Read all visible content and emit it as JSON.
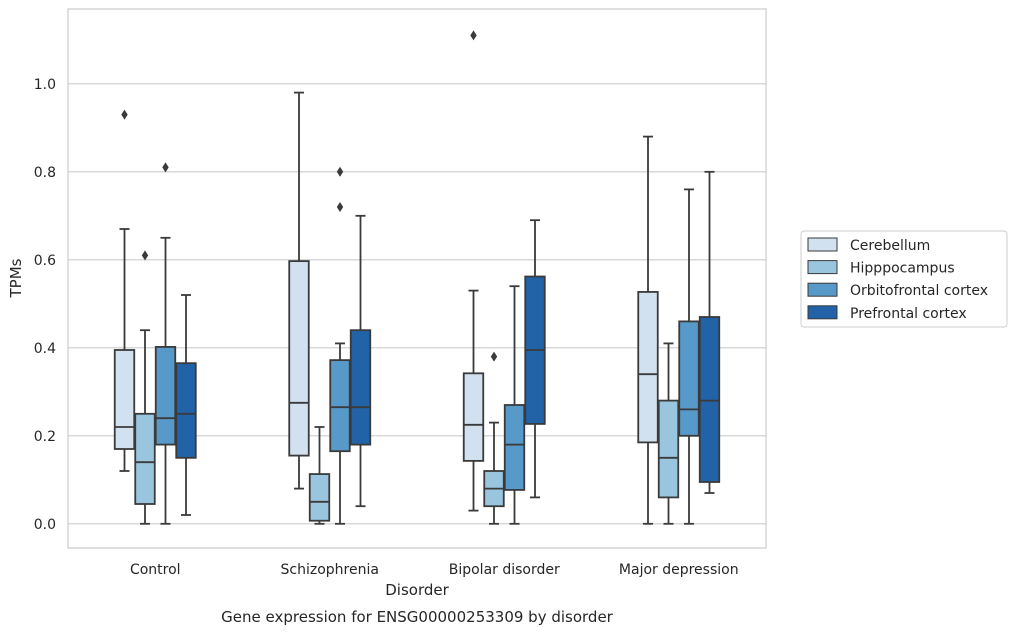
{
  "chart_data": {
    "type": "box",
    "caption": "Gene expression for ENSG00000253309 by disorder",
    "xlabel": "Disorder",
    "ylabel": "TPMs",
    "ylim": [
      -0.055,
      1.17
    ],
    "yticks": [
      "0.0",
      "0.2",
      "0.4",
      "0.6",
      "0.8",
      "1.0"
    ],
    "grid": "horizontal",
    "legend_position": "right",
    "categories": [
      "Control",
      "Schizophrenia",
      "Bipolar disorder",
      "Major depression"
    ],
    "series": [
      {
        "name": "Cerebellum",
        "color": "#d1e1f0",
        "boxes": [
          {
            "whisker_low": 0.12,
            "q1": 0.17,
            "median": 0.22,
            "q3": 0.395,
            "whisker_high": 0.67,
            "outliers": [
              0.93
            ]
          },
          {
            "whisker_low": 0.08,
            "q1": 0.155,
            "median": 0.275,
            "q3": 0.597,
            "whisker_high": 0.98,
            "outliers": []
          },
          {
            "whisker_low": 0.03,
            "q1": 0.143,
            "median": 0.225,
            "q3": 0.342,
            "whisker_high": 0.53,
            "outliers": [
              1.11
            ]
          },
          {
            "whisker_low": 0.0,
            "q1": 0.185,
            "median": 0.34,
            "q3": 0.527,
            "whisker_high": 0.88,
            "outliers": []
          }
        ]
      },
      {
        "name": "Hipppocampus",
        "color": "#9ac5de",
        "boxes": [
          {
            "whisker_low": 0.0,
            "q1": 0.045,
            "median": 0.14,
            "q3": 0.25,
            "whisker_high": 0.44,
            "outliers": [
              0.61
            ]
          },
          {
            "whisker_low": 0.0,
            "q1": 0.007,
            "median": 0.05,
            "q3": 0.113,
            "whisker_high": 0.22,
            "outliers": []
          },
          {
            "whisker_low": 0.0,
            "q1": 0.04,
            "median": 0.08,
            "q3": 0.12,
            "whisker_high": 0.23,
            "outliers": [
              0.38
            ]
          },
          {
            "whisker_low": 0.0,
            "q1": 0.06,
            "median": 0.15,
            "q3": 0.28,
            "whisker_high": 0.41,
            "outliers": []
          }
        ]
      },
      {
        "name": "Orbitofrontal cortex",
        "color": "#5799c8",
        "boxes": [
          {
            "whisker_low": 0.0,
            "q1": 0.18,
            "median": 0.24,
            "q3": 0.402,
            "whisker_high": 0.65,
            "outliers": [
              0.81
            ]
          },
          {
            "whisker_low": 0.0,
            "q1": 0.165,
            "median": 0.265,
            "q3": 0.372,
            "whisker_high": 0.41,
            "outliers": [
              0.72,
              0.8
            ]
          },
          {
            "whisker_low": 0.0,
            "q1": 0.077,
            "median": 0.18,
            "q3": 0.27,
            "whisker_high": 0.54,
            "outliers": []
          },
          {
            "whisker_low": 0.0,
            "q1": 0.2,
            "median": 0.26,
            "q3": 0.46,
            "whisker_high": 0.76,
            "outliers": []
          }
        ]
      },
      {
        "name": "Prefrontal cortex",
        "color": "#2263a8",
        "boxes": [
          {
            "whisker_low": 0.02,
            "q1": 0.15,
            "median": 0.25,
            "q3": 0.365,
            "whisker_high": 0.52,
            "outliers": []
          },
          {
            "whisker_low": 0.04,
            "q1": 0.18,
            "median": 0.265,
            "q3": 0.44,
            "whisker_high": 0.7,
            "outliers": []
          },
          {
            "whisker_low": 0.06,
            "q1": 0.227,
            "median": 0.395,
            "q3": 0.562,
            "whisker_high": 0.69,
            "outliers": []
          },
          {
            "whisker_low": 0.07,
            "q1": 0.095,
            "median": 0.28,
            "q3": 0.47,
            "whisker_high": 0.8,
            "outliers": []
          }
        ]
      }
    ]
  },
  "style": {
    "grid_color": "#cccccc",
    "line_color": "#3a3a3a",
    "frame_color": "#cccccc"
  }
}
